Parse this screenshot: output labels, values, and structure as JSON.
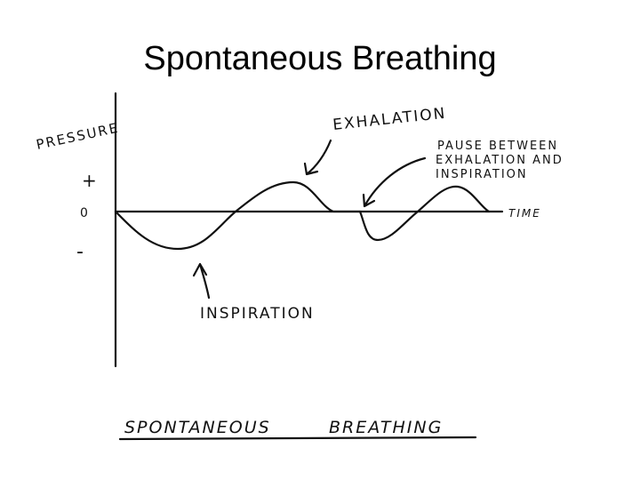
{
  "header": {
    "title": "Spontaneous Breathing"
  },
  "diagram": {
    "y_label": "PRESSURE",
    "plus": "+",
    "zero": "0",
    "minus": "-",
    "x_label": "TIME",
    "exhalation": "EXHALATION",
    "pause": [
      "PAUSE BETWEEN",
      "EXHALATION AND",
      "INSPIRATION"
    ],
    "inspiration": "INSPIRATION",
    "caption": [
      "SPONTANEOUS",
      "BREATHING"
    ]
  }
}
